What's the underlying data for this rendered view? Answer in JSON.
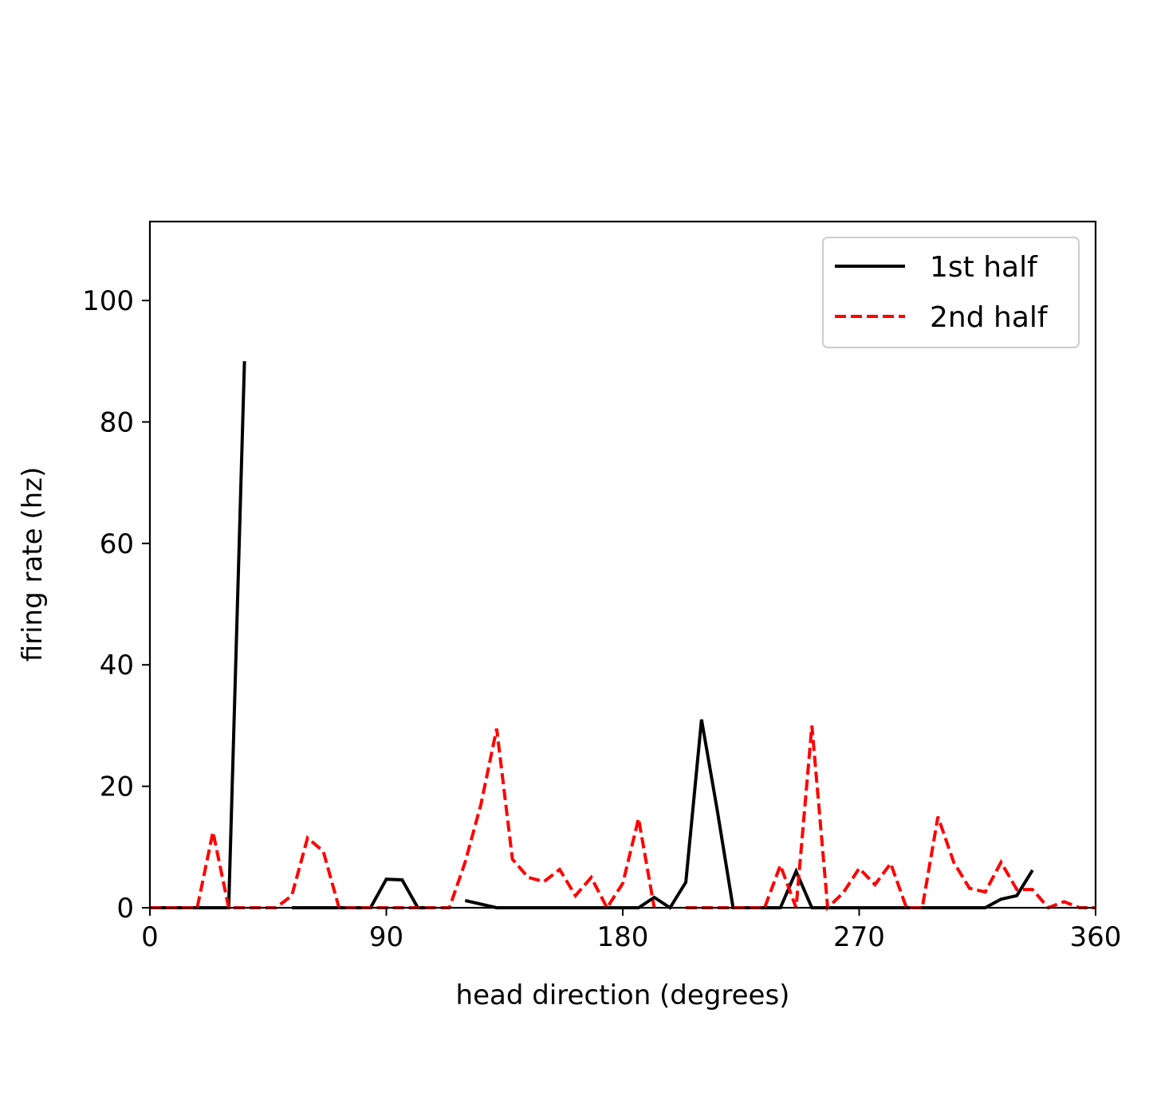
{
  "chart_data": {
    "type": "line",
    "title": "",
    "xlabel": "head direction (degrees)",
    "ylabel": "firing rate (hz)",
    "xlim": [
      0,
      360
    ],
    "ylim": [
      0,
      113
    ],
    "xticks": [
      0,
      90,
      180,
      270,
      360
    ],
    "yticks": [
      0,
      20,
      40,
      60,
      80,
      100
    ],
    "grid": false,
    "legend_position": "top-right",
    "series": [
      {
        "name": "1st half",
        "color": "#000000",
        "style": "solid",
        "segments": [
          [
            [
              0,
              0
            ],
            [
              6,
              0
            ],
            [
              12,
              0
            ],
            [
              18,
              0
            ],
            [
              24,
              0
            ],
            [
              30,
              0
            ],
            [
              36,
              90
            ]
          ],
          [
            [
              54,
              0
            ],
            [
              60,
              0
            ],
            [
              66,
              0
            ],
            [
              72,
              0
            ],
            [
              78,
              0
            ],
            [
              84,
              0
            ],
            [
              90,
              4.7
            ],
            [
              96,
              4.6
            ],
            [
              102,
              0
            ],
            [
              108,
              0
            ]
          ],
          [
            [
              120,
              1.2
            ],
            [
              126,
              0.6
            ],
            [
              132,
              0
            ],
            [
              138,
              0
            ],
            [
              144,
              0
            ],
            [
              150,
              0
            ],
            [
              156,
              0
            ],
            [
              162,
              0
            ],
            [
              168,
              0
            ],
            [
              174,
              0
            ],
            [
              180,
              0
            ],
            [
              186,
              0
            ],
            [
              192,
              1.7
            ],
            [
              198,
              0
            ],
            [
              204,
              4.2
            ],
            [
              210,
              31
            ],
            [
              216,
              16
            ],
            [
              222,
              0
            ],
            [
              228,
              0
            ],
            [
              234,
              0
            ],
            [
              240,
              0
            ],
            [
              246,
              6
            ],
            [
              252,
              0
            ],
            [
              258,
              0
            ],
            [
              264,
              0
            ],
            [
              270,
              0
            ],
            [
              276,
              0
            ],
            [
              282,
              0
            ],
            [
              288,
              0
            ],
            [
              294,
              0
            ],
            [
              300,
              0
            ],
            [
              306,
              0
            ],
            [
              312,
              0
            ],
            [
              318,
              0
            ],
            [
              324,
              1.4
            ],
            [
              330,
              2
            ],
            [
              336,
              6.2
            ]
          ]
        ]
      },
      {
        "name": "2nd half",
        "color": "#ff0000",
        "style": "dashed",
        "segments": [
          [
            [
              0,
              0
            ],
            [
              6,
              0
            ],
            [
              12,
              0
            ],
            [
              18,
              0
            ],
            [
              24,
              12.5
            ],
            [
              30,
              0
            ],
            [
              36,
              0
            ],
            [
              42,
              0
            ],
            [
              48,
              0
            ],
            [
              54,
              2
            ],
            [
              60,
              11.5
            ],
            [
              66,
              9.3
            ],
            [
              72,
              0
            ],
            [
              78,
              0
            ],
            [
              84,
              0
            ],
            [
              90,
              0
            ],
            [
              96,
              0
            ],
            [
              102,
              0
            ],
            [
              108,
              0
            ],
            [
              114,
              0
            ],
            [
              120,
              7.5
            ],
            [
              126,
              17
            ],
            [
              132,
              29.5
            ],
            [
              138,
              8
            ],
            [
              144,
              5
            ],
            [
              150,
              4.3
            ],
            [
              156,
              6.3
            ],
            [
              162,
              2
            ],
            [
              168,
              5
            ],
            [
              174,
              0
            ],
            [
              180,
              4
            ],
            [
              186,
              14.7
            ],
            [
              192,
              0
            ]
          ],
          [
            [
              204,
              0
            ],
            [
              210,
              0
            ],
            [
              216,
              0
            ],
            [
              222,
              0
            ],
            [
              228,
              0
            ],
            [
              234,
              0
            ],
            [
              240,
              7
            ],
            [
              246,
              0
            ],
            [
              252,
              30
            ],
            [
              258,
              0
            ],
            [
              264,
              2.5
            ],
            [
              270,
              6.5
            ],
            [
              276,
              3.8
            ],
            [
              282,
              7.3
            ],
            [
              288,
              0
            ],
            [
              294,
              0
            ],
            [
              300,
              15
            ],
            [
              306,
              7.5
            ],
            [
              312,
              3.2
            ],
            [
              318,
              2.6
            ],
            [
              324,
              7.5
            ],
            [
              330,
              3
            ],
            [
              336,
              3
            ],
            [
              342,
              0
            ],
            [
              348,
              1
            ],
            [
              354,
              0
            ],
            [
              360,
              0
            ]
          ]
        ]
      }
    ]
  }
}
